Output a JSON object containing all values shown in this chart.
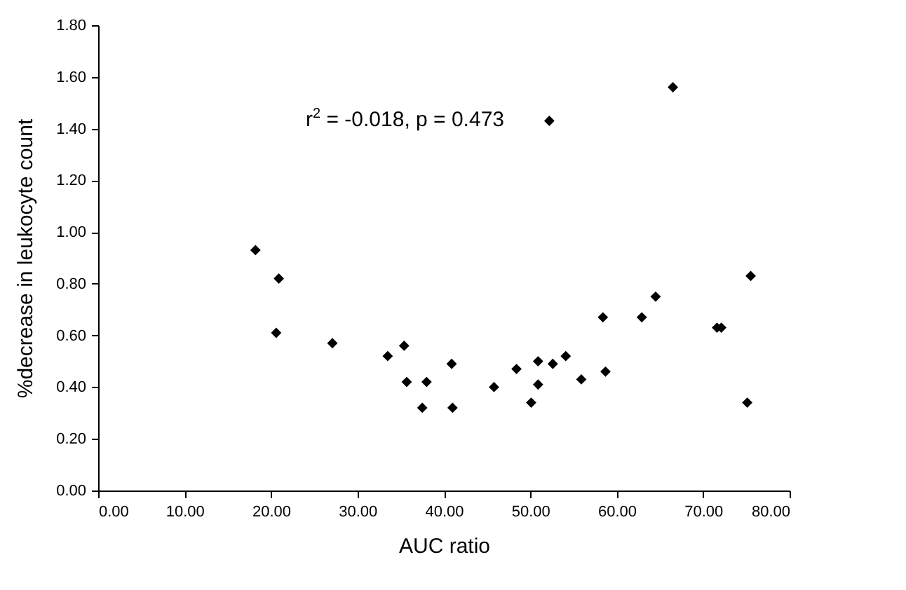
{
  "chart_data": {
    "type": "scatter",
    "xlabel": "AUC ratio",
    "ylabel": "%decrease in leukocyte count",
    "annotations": [
      "r$^{2}$ = -0.018, p = 0.473"
    ],
    "x": [
      18.2,
      20.9,
      20.6,
      27.1,
      33.5,
      35.4,
      35.7,
      37.5,
      38.0,
      40.9,
      41.0,
      45.8,
      48.4,
      50.1,
      50.9,
      50.9,
      52.6,
      54.1,
      55.9,
      58.4,
      58.7,
      52.2,
      66.5,
      62.9,
      64.5,
      71.6,
      72.1,
      75.5,
      75.1
    ],
    "series": [
      {
        "color": "#000000",
        "values": [
          0.93,
          0.82,
          0.61,
          0.57,
          0.52,
          0.56,
          0.42,
          0.32,
          0.42,
          0.49,
          0.32,
          0.4,
          0.47,
          0.34,
          0.41,
          0.5,
          0.49,
          0.52,
          0.43,
          0.67,
          0.46,
          1.43,
          1.56,
          0.67,
          0.75,
          0.63,
          0.63,
          0.83,
          0.34
        ]
      }
    ],
    "marker": "diamond",
    "grid": false,
    "xlim": [
      0,
      80
    ],
    "xticks": [
      {
        "value": 0,
        "label": "0.00"
      },
      {
        "value": 10,
        "label": "10.00"
      },
      {
        "value": 20,
        "label": "20.00"
      },
      {
        "value": 30,
        "label": "30.00"
      },
      {
        "value": 40,
        "label": "40.00"
      },
      {
        "value": 50,
        "label": "50.00"
      },
      {
        "value": 60,
        "label": "60.00"
      },
      {
        "value": 70,
        "label": "70.00"
      },
      {
        "value": 80,
        "label": "80.00"
      }
    ],
    "ylim": [
      0,
      1.8
    ],
    "yticks": [
      {
        "value": 0,
        "label": "0.00"
      },
      {
        "value": 0.2,
        "label": "0.20"
      },
      {
        "value": 0.4,
        "label": "0.40"
      },
      {
        "value": 0.6,
        "label": "0.60"
      },
      {
        "value": 0.8,
        "label": "0.80"
      },
      {
        "value": 1.0,
        "label": "1.00"
      },
      {
        "value": 1.2,
        "label": "1.20"
      },
      {
        "value": 1.4,
        "label": "1.40"
      },
      {
        "value": 1.6,
        "label": "1.60"
      },
      {
        "value": 1.8,
        "label": "1.80"
      }
    ]
  }
}
